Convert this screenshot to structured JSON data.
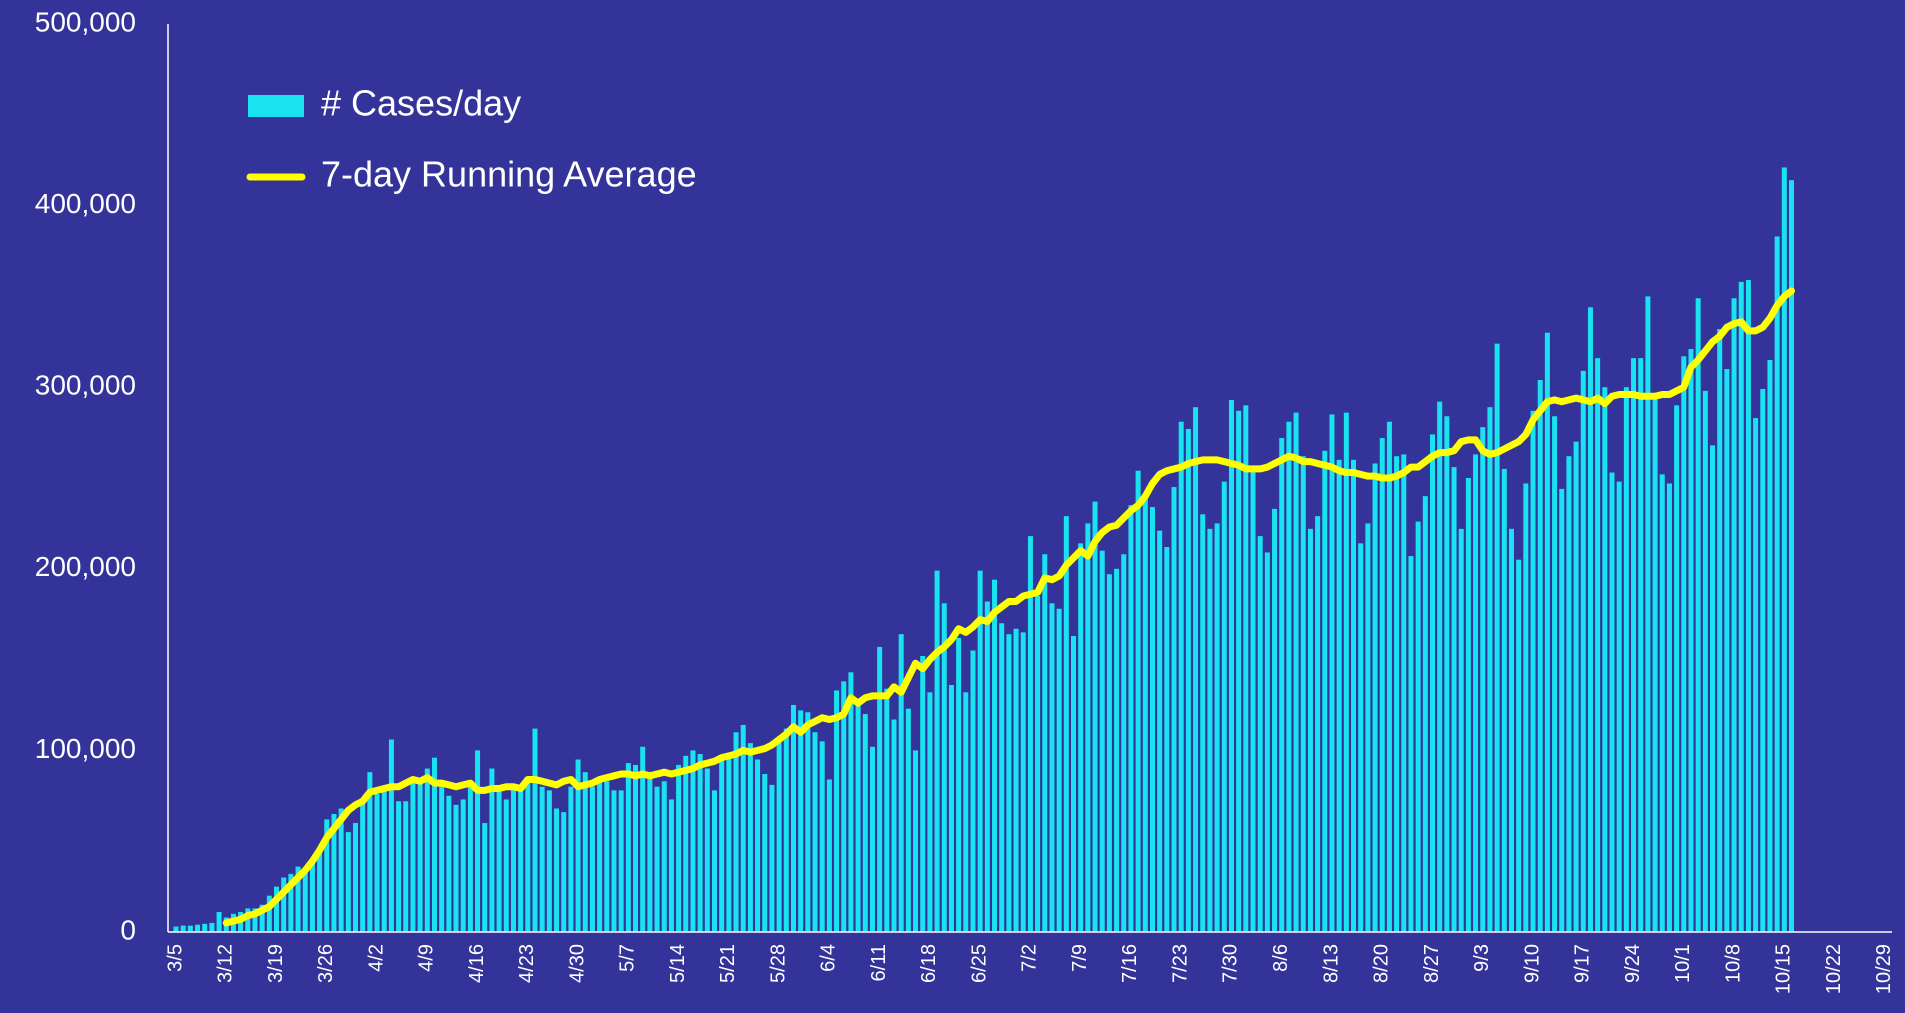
{
  "chart_data": {
    "type": "bar_line",
    "categories": [
      "3/5",
      null,
      null,
      null,
      null,
      null,
      null,
      "3/12",
      null,
      null,
      null,
      null,
      null,
      null,
      "3/19",
      null,
      null,
      null,
      null,
      null,
      null,
      "3/26",
      null,
      null,
      null,
      null,
      null,
      null,
      "4/2",
      null,
      null,
      null,
      null,
      null,
      null,
      "4/9",
      null,
      null,
      null,
      null,
      null,
      null,
      "4/16",
      null,
      null,
      null,
      null,
      null,
      null,
      "4/23",
      null,
      null,
      null,
      null,
      null,
      null,
      "4/30",
      null,
      null,
      null,
      null,
      null,
      null,
      "5/7",
      null,
      null,
      null,
      null,
      null,
      null,
      "5/14",
      null,
      null,
      null,
      null,
      null,
      null,
      "5/21",
      null,
      null,
      null,
      null,
      null,
      null,
      "5/28",
      null,
      null,
      null,
      null,
      null,
      null,
      "6/4",
      null,
      null,
      null,
      null,
      null,
      null,
      "6/11",
      null,
      null,
      null,
      null,
      null,
      null,
      "6/18",
      null,
      null,
      null,
      null,
      null,
      null,
      "6/25",
      null,
      null,
      null,
      null,
      null,
      null,
      "7/2",
      null,
      null,
      null,
      null,
      null,
      null,
      "7/9",
      null,
      null,
      null,
      null,
      null,
      null,
      "7/16",
      null,
      null,
      null,
      null,
      null,
      null,
      "7/23",
      null,
      null,
      null,
      null,
      null,
      null,
      "7/30",
      null,
      null,
      null,
      null,
      null,
      null,
      "8/6",
      null,
      null,
      null,
      null,
      null,
      null,
      "8/13",
      null,
      null,
      null,
      null,
      null,
      null,
      "8/20",
      null,
      null,
      null,
      null,
      null,
      null,
      "8/27",
      null,
      null,
      null,
      null,
      null,
      null,
      "9/3",
      null,
      null,
      null,
      null,
      null,
      null,
      "9/10",
      null,
      null,
      null,
      null,
      null,
      null,
      "9/17",
      null,
      null,
      null,
      null,
      null,
      null,
      "9/24",
      null,
      null,
      null,
      null,
      null,
      null,
      "10/1",
      null,
      null,
      null,
      null,
      null,
      null,
      "10/8",
      null,
      null,
      null,
      null,
      null,
      null,
      "10/15",
      null,
      null,
      null,
      null,
      null,
      null,
      "10/22",
      null,
      null,
      null,
      null,
      null,
      null,
      "10/29"
    ],
    "series": [
      {
        "name": "# Cases/day",
        "kind": "bar",
        "color": "#19e3f0",
        "values": [
          3000,
          3500,
          3500,
          4000,
          4500,
          5000,
          11000,
          8000,
          10000,
          11000,
          13000,
          13000,
          15000,
          20000,
          25000,
          30000,
          32000,
          36000,
          33000,
          40000,
          46000,
          62000,
          65000,
          68000,
          55000,
          60000,
          72000,
          88000,
          76000,
          80000,
          106000,
          72000,
          72000,
          83000,
          85000,
          90000,
          96000,
          83000,
          75000,
          70000,
          73000,
          81000,
          100000,
          60000,
          90000,
          78000,
          73000,
          80000,
          78000,
          85000,
          112000,
          80000,
          78000,
          68000,
          66000,
          80000,
          95000,
          88000,
          80000,
          85000,
          83000,
          78000,
          78000,
          93000,
          92000,
          102000,
          88000,
          80000,
          83000,
          73000,
          92000,
          97000,
          100000,
          98000,
          90000,
          78000,
          95000,
          96000,
          110000,
          114000,
          104000,
          95000,
          87000,
          81000,
          106000,
          112000,
          125000,
          122000,
          121000,
          110000,
          105000,
          84000,
          133000,
          138000,
          143000,
          128000,
          120000,
          102000,
          157000,
          134000,
          117000,
          164000,
          123000,
          100000,
          152000,
          132000,
          199000,
          181000,
          136000,
          162000,
          132000,
          155000,
          199000,
          182000,
          194000,
          170000,
          164000,
          167000,
          165000,
          218000,
          185000,
          208000,
          181000,
          178000,
          229000,
          163000,
          214000,
          225000,
          237000,
          210000,
          197000,
          200000,
          208000,
          235000,
          254000,
          241000,
          234000,
          221000,
          212000,
          245000,
          281000,
          277000,
          289000,
          230000,
          222000,
          225000,
          248000,
          293000,
          287000,
          290000,
          256000,
          218000,
          209000,
          233000,
          272000,
          281000,
          286000,
          262000,
          222000,
          229000,
          265000,
          285000,
          260000,
          286000,
          260000,
          214000,
          225000,
          258000,
          272000,
          281000,
          262000,
          263000,
          207000,
          226000,
          240000,
          274000,
          292000,
          284000,
          256000,
          222000,
          250000,
          263000,
          278000,
          289000,
          324000,
          255000,
          222000,
          205000,
          247000,
          287000,
          304000,
          330000,
          284000,
          244000,
          262000,
          270000,
          309000,
          344000,
          316000,
          300000,
          253000,
          248000,
          300000,
          316000,
          316000,
          350000,
          296000,
          252000,
          247000,
          290000,
          317000,
          321000,
          349000,
          298000,
          268000,
          332000,
          310000,
          349000,
          358000,
          359000,
          283000,
          299000,
          315000,
          383000,
          421000,
          414000,
          null,
          null,
          null,
          null,
          null,
          null,
          null,
          null,
          null,
          null,
          null,
          null,
          null
        ]
      },
      {
        "name": "7-day Running Average",
        "kind": "line",
        "color": "#ffff00",
        "values": [
          null,
          null,
          null,
          null,
          null,
          null,
          null,
          5000,
          6000,
          7000,
          9000,
          10000,
          12000,
          14000,
          18000,
          22000,
          26000,
          30000,
          34000,
          39000,
          45000,
          52000,
          57000,
          62000,
          67000,
          70000,
          72000,
          77000,
          78000,
          79000,
          80000,
          80000,
          82000,
          84000,
          83000,
          85000,
          82000,
          82000,
          81000,
          80000,
          81000,
          82000,
          78000,
          78000,
          79000,
          79000,
          80000,
          80000,
          79000,
          84000,
          84000,
          83000,
          82000,
          81000,
          83000,
          84000,
          80000,
          81000,
          82000,
          84000,
          85000,
          86000,
          87000,
          87000,
          86000,
          87000,
          86000,
          87000,
          88000,
          87000,
          88000,
          89000,
          90000,
          92000,
          93000,
          94000,
          96000,
          97000,
          98000,
          100000,
          99000,
          100000,
          101000,
          103000,
          106000,
          109000,
          113000,
          110000,
          114000,
          116000,
          118000,
          117000,
          118000,
          120000,
          129000,
          126000,
          129000,
          130000,
          130000,
          130000,
          135000,
          132000,
          140000,
          148000,
          145000,
          150000,
          154000,
          157000,
          161000,
          167000,
          165000,
          168000,
          172000,
          171000,
          176000,
          179000,
          182000,
          182000,
          185000,
          186000,
          187000,
          195000,
          194000,
          196000,
          202000,
          206000,
          210000,
          207000,
          215000,
          220000,
          223000,
          224000,
          228000,
          232000,
          235000,
          240000,
          247000,
          252000,
          254000,
          255000,
          256000,
          258000,
          259000,
          260000,
          260000,
          260000,
          259000,
          258000,
          257000,
          255000,
          255000,
          255000,
          256000,
          258000,
          260000,
          262000,
          261000,
          259000,
          259000,
          258000,
          257000,
          256000,
          254000,
          253000,
          253000,
          252000,
          251000,
          251000,
          250000,
          250000,
          251000,
          253000,
          256000,
          256000,
          259000,
          262000,
          264000,
          264000,
          265000,
          270000,
          271000,
          271000,
          265000,
          263000,
          264000,
          266000,
          268000,
          270000,
          274000,
          282000,
          287000,
          292000,
          293000,
          292000,
          293000,
          294000,
          293000,
          292000,
          294000,
          291000,
          295000,
          296000,
          296000,
          296000,
          295000,
          295000,
          295000,
          296000,
          296000,
          298000,
          300000,
          311000,
          315000,
          320000,
          325000,
          328000,
          333000,
          335000,
          336000,
          331000,
          331000,
          333000,
          338000,
          345000,
          350000,
          353000,
          null,
          null,
          null,
          null,
          null,
          null,
          null,
          null,
          null,
          null,
          null,
          null,
          null
        ]
      }
    ],
    "ylim": [
      0,
      500000
    ],
    "yticks": [
      0,
      {
        "value": 100000,
        "label": "100,000"
      },
      {
        "value": 200000,
        "label": "200,000"
      },
      {
        "value": 300000,
        "label": "300,000"
      },
      {
        "value": 400000,
        "label": "400,000"
      },
      {
        "value": 500000,
        "label": "500,000"
      }
    ],
    "grid": false,
    "legend": "upper left",
    "background": "#333399"
  }
}
